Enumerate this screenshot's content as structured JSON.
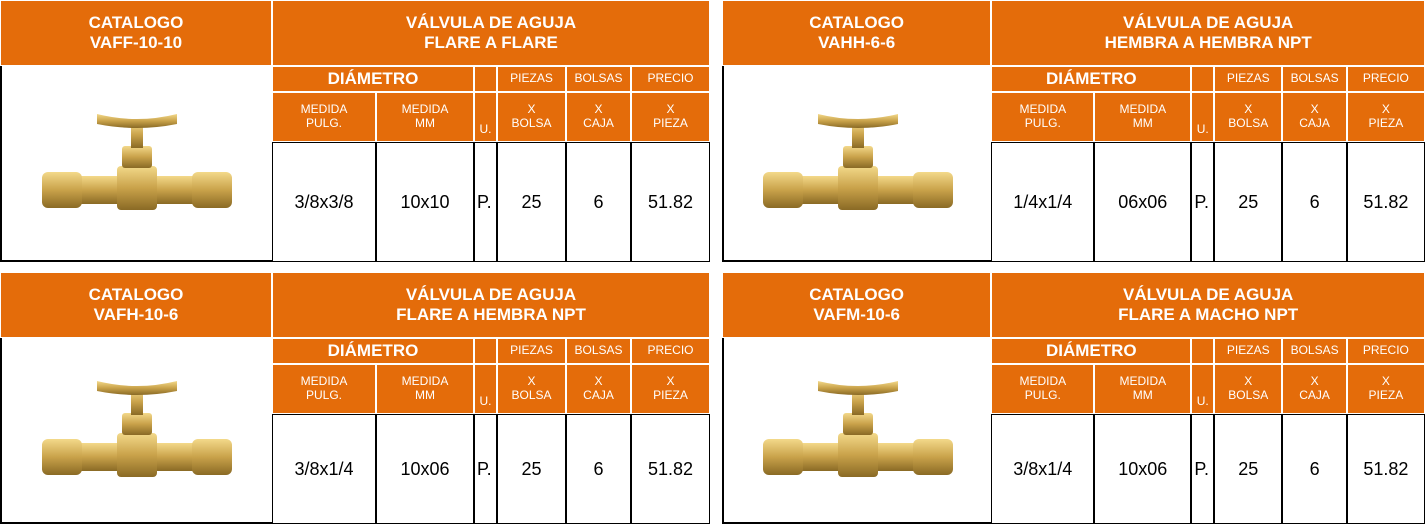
{
  "cards": [
    {
      "catalog": "CATALOGO",
      "code": "VAFF-10-10",
      "title": "VÁLVULA DE AGUJA",
      "subtitle": "FLARE A FLARE",
      "diameter": "DIÁMETRO",
      "top_labels": [
        "PIEZAS",
        "BOLSAS",
        "PRECIO"
      ],
      "sub_labels": [
        [
          "MEDIDA",
          "PULG."
        ],
        [
          "MEDIDA",
          "MM"
        ],
        [
          "U."
        ],
        [
          "X",
          "BOLSA"
        ],
        [
          "X",
          "CAJA"
        ],
        [
          "X",
          "PIEZA"
        ]
      ],
      "row": [
        "3/8x3/8",
        "10x10",
        "P.",
        "25",
        "6",
        "51.82"
      ]
    },
    {
      "catalog": "CATALOGO",
      "code": "VAHH-6-6",
      "title": "VÁLVULA DE AGUJA",
      "subtitle": "HEMBRA A HEMBRA NPT",
      "diameter": "DIÁMETRO",
      "top_labels": [
        "PIEZAS",
        "BOLSAS",
        "PRECIO"
      ],
      "sub_labels": [
        [
          "MEDIDA",
          "PULG."
        ],
        [
          "MEDIDA",
          "MM"
        ],
        [
          "U."
        ],
        [
          "X",
          "BOLSA"
        ],
        [
          "X",
          "CAJA"
        ],
        [
          "X",
          "PIEZA"
        ]
      ],
      "row": [
        "1/4x1/4",
        "06x06",
        "P.",
        "25",
        "6",
        "51.82"
      ]
    },
    {
      "catalog": "CATALOGO",
      "code": "VAFH-10-6",
      "title": "VÁLVULA DE AGUJA",
      "subtitle": "FLARE A HEMBRA NPT",
      "diameter": "DIÁMETRO",
      "top_labels": [
        "PIEZAS",
        "BOLSAS",
        "PRECIO"
      ],
      "sub_labels": [
        [
          "MEDIDA",
          "PULG."
        ],
        [
          "MEDIDA",
          "MM"
        ],
        [
          "U."
        ],
        [
          "X",
          "BOLSA"
        ],
        [
          "X",
          "CAJA"
        ],
        [
          "X",
          "PIEZA"
        ]
      ],
      "row": [
        "3/8x1/4",
        "10x06",
        "P.",
        "25",
        "6",
        "51.82"
      ]
    },
    {
      "catalog": "CATALOGO",
      "code": "VAFM-10-6",
      "title": "VÁLVULA DE AGUJA",
      "subtitle": "FLARE A MACHO NPT",
      "diameter": "DIÁMETRO",
      "top_labels": [
        "PIEZAS",
        "BOLSAS",
        "PRECIO"
      ],
      "sub_labels": [
        [
          "MEDIDA",
          "PULG."
        ],
        [
          "MEDIDA",
          "MM"
        ],
        [
          "U."
        ],
        [
          "X",
          "BOLSA"
        ],
        [
          "X",
          "CAJA"
        ],
        [
          "X",
          "PIEZA"
        ]
      ],
      "row": [
        "3/8x1/4",
        "10x06",
        "P.",
        "25",
        "6",
        "51.82"
      ]
    }
  ]
}
